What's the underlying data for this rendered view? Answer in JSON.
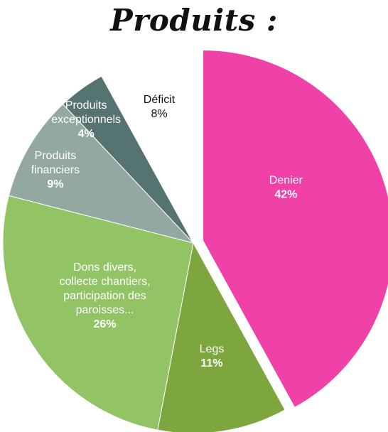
{
  "chart_data": {
    "type": "pie",
    "title": "Produits :",
    "slices": [
      {
        "name": "Denier",
        "value": 42,
        "display": "42%",
        "color": "#f041a8",
        "label_color": "#ffffff",
        "exploded": true
      },
      {
        "name": "Legs",
        "value": 11,
        "display": "11%",
        "color": "#7ea63f",
        "label_color": "#ffffff",
        "exploded": false
      },
      {
        "name": "Dons divers, collecte chantiers, participation des paroisses...",
        "value": 26,
        "display": "26%",
        "color": "#92c466",
        "label_color": "#ffffff",
        "exploded": false
      },
      {
        "name": "Produits financiers",
        "value": 9,
        "display": "9%",
        "color": "#94a8a2",
        "label_color": "#ffffff",
        "exploded": false
      },
      {
        "name": "Produits exceptionnels",
        "value": 4,
        "display": "4%",
        "color": "#557370",
        "label_color": "#ffffff",
        "exploded": false
      },
      {
        "name": "Déficit",
        "value": 8,
        "display": "8%",
        "color": "#ffffff",
        "label_color": "#111111",
        "exploded": false
      }
    ]
  }
}
